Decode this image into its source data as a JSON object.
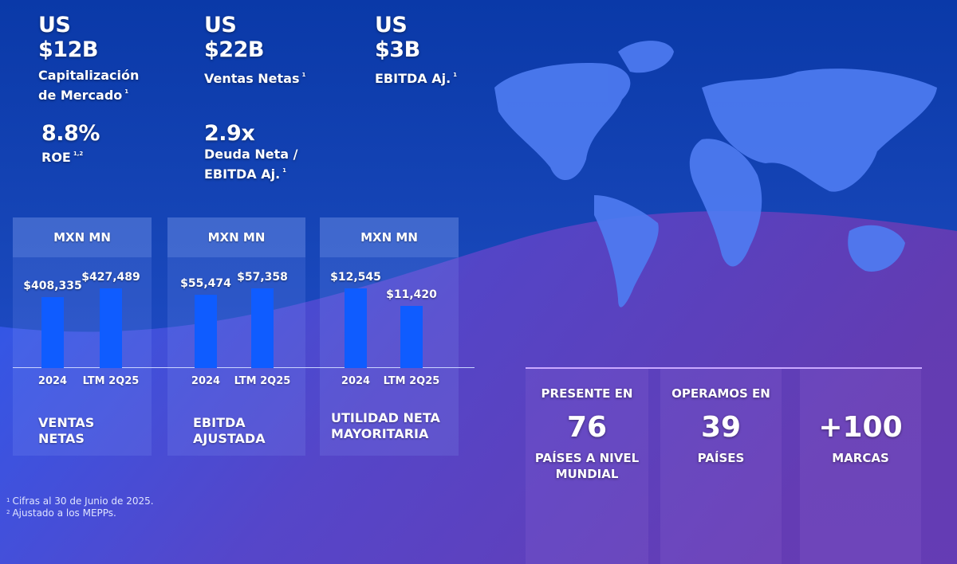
{
  "colors": {
    "bg_top": "#0a39a8",
    "wave": "#6a3fb5",
    "bar": "#0f5cff",
    "map": "#4f7cf2"
  },
  "kpis": [
    {
      "currency": "US",
      "value": "$12B",
      "label_lines": [
        "Capitalización",
        "de Mercado"
      ],
      "note": "1"
    },
    {
      "currency": "US",
      "value": "$22B",
      "label_lines": [
        "Ventas Netas"
      ],
      "note": "1"
    },
    {
      "currency": "US",
      "value": "$3B",
      "label_lines": [
        "EBITDA Aj."
      ],
      "note": "1"
    },
    {
      "value": "8.8%",
      "label_lines": [
        "ROE"
      ],
      "note": "1,2"
    },
    {
      "value": "2.9x",
      "label_lines": [
        "Deuda Neta /",
        "EBITDA Aj."
      ],
      "note": "1"
    }
  ],
  "chart_data": [
    {
      "type": "bar",
      "title": "VENTAS NETAS",
      "unit": "MXN MN",
      "categories": [
        "2024",
        "LTM 2Q25"
      ],
      "values": [
        408335,
        427489
      ],
      "labels": [
        "$408,335",
        "$427,489"
      ]
    },
    {
      "type": "bar",
      "title": "EBITDA AJUSTADA",
      "unit": "MXN MN",
      "categories": [
        "2024",
        "LTM 2Q25"
      ],
      "values": [
        55474,
        57358
      ],
      "labels": [
        "$55,474",
        "$57,358"
      ]
    },
    {
      "type": "bar",
      "title": "UTILIDAD NETA MAYORITARIA",
      "unit": "MXN MN",
      "categories": [
        "2024",
        "LTM 2Q25"
      ],
      "values": [
        12545,
        11420
      ],
      "labels": [
        "$12,545",
        "$11,420"
      ]
    }
  ],
  "cards": [
    {
      "title_lines": [
        "VENTAS",
        "NETAS"
      ]
    },
    {
      "title_lines": [
        "EBITDA",
        "AJUSTADA"
      ]
    },
    {
      "title_lines": [
        "UTILIDAD NETA",
        "MAYORITARIA"
      ]
    }
  ],
  "presence": [
    {
      "top": "PRESENTE EN",
      "number": "76",
      "bottom_lines": [
        "PAÍSES A NIVEL",
        "MUNDIAL"
      ]
    },
    {
      "top": "OPERAMOS EN",
      "number": "39",
      "bottom_lines": [
        "PAÍSES"
      ]
    },
    {
      "top": "",
      "number": "+100",
      "bottom_lines": [
        "MARCAS"
      ]
    }
  ],
  "footnotes": [
    {
      "mark": "1",
      "text": "Cifras al 30 de Junio de 2025."
    },
    {
      "mark": "2",
      "text": "Ajustado a los MEPPs."
    }
  ]
}
